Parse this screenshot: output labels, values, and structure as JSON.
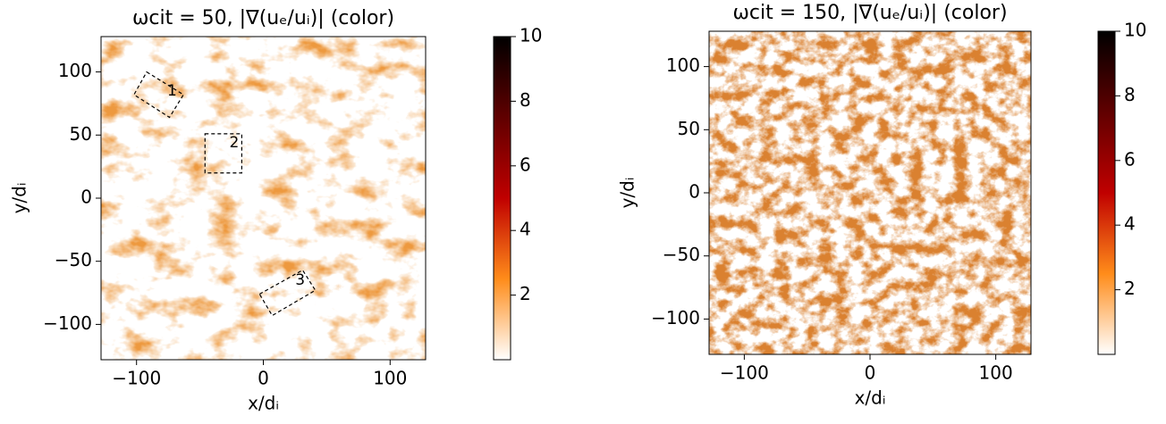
{
  "chart_data": [
    {
      "type": "heatmap",
      "title": "ωcit = 50, |∇(uₑ/uᵢ)| (color)",
      "xlabel": "x/dᵢ",
      "ylabel": "y/dᵢ",
      "xlim": [
        -128,
        128
      ],
      "ylim": [
        -128,
        128
      ],
      "xticks": [
        {
          "value": -100,
          "label": "−100"
        },
        0,
        100
      ],
      "yticks": [
        {
          "value": -100,
          "label": "−100"
        },
        {
          "value": -50,
          "label": "−50"
        },
        0,
        50,
        100
      ],
      "colorbar": {
        "lim": [
          0,
          10
        ],
        "ticks": [
          2,
          4,
          6,
          8,
          10
        ]
      },
      "colormap": [
        "#ffffff",
        "#ff8c1a",
        "#c00000",
        "#600000",
        "#000000"
      ],
      "annotations": [
        {
          "text": "1",
          "x": -72,
          "y": 85,
          "box": [
            [
              -92,
              100
            ],
            [
              -63,
              82
            ],
            [
              -74,
              64
            ],
            [
              -102,
              82
            ]
          ]
        },
        {
          "text": "2",
          "x": -23,
          "y": 44,
          "box": [
            [
              -46,
              51
            ],
            [
              -17,
              51
            ],
            [
              -17,
              20
            ],
            [
              -46,
              20
            ]
          ]
        },
        {
          "text": "3",
          "x": 29,
          "y": -65,
          "box": [
            [
              -3,
              -76
            ],
            [
              31,
              -57
            ],
            [
              41,
              -73
            ],
            [
              7,
              -93
            ]
          ]
        }
      ]
    },
    {
      "type": "heatmap",
      "title": "ωcit = 150, |∇(uₑ/uᵢ)| (color)",
      "xlabel": "x/dᵢ",
      "ylabel": "y/dᵢ",
      "xlim": [
        -128,
        128
      ],
      "ylim": [
        -128,
        128
      ],
      "xticks": [
        {
          "value": -100,
          "label": "−100"
        },
        0,
        100
      ],
      "yticks": [
        {
          "value": -100,
          "label": "−100"
        },
        {
          "value": -50,
          "label": "−50"
        },
        0,
        50,
        100
      ],
      "colorbar": {
        "lim": [
          0,
          10
        ],
        "ticks": [
          2,
          4,
          6,
          8,
          10
        ]
      },
      "colormap": [
        "#ffffff",
        "#ff8c1a",
        "#c00000",
        "#600000",
        "#000000"
      ]
    }
  ]
}
